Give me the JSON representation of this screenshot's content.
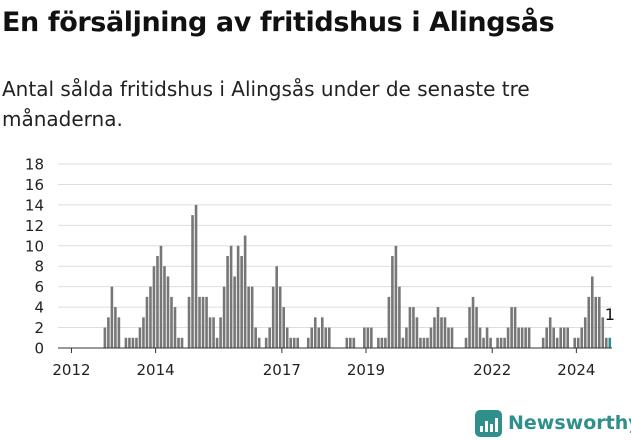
{
  "title": "En försäljning av fritidshus i Alingsås",
  "subtitle": "Antal sålda fritidshus i Alingsås under de senaste tre månaderna.",
  "brand": {
    "name": "Newsworthy"
  },
  "colors": {
    "bar": "#777777",
    "highlight": "#2a8f95",
    "grid": "#dddddd",
    "brand": "#2f8f8a"
  },
  "chart_data": {
    "type": "bar",
    "title": "",
    "xlabel": "",
    "ylabel": "",
    "ylim": [
      0,
      18
    ],
    "y_ticks": [
      "0",
      "2",
      "4",
      "6",
      "8",
      "10",
      "12",
      "14",
      "16",
      "18"
    ],
    "x_ticks": [
      "2012",
      "2014",
      "2017",
      "2019",
      "2022",
      "2024"
    ],
    "grid": true,
    "legend": "none",
    "last_value_label": "1",
    "series": [
      {
        "values": [
          0,
          0,
          0,
          0,
          0,
          0,
          0,
          0,
          0,
          0,
          0,
          0,
          0,
          2,
          3,
          6,
          4,
          3,
          0,
          1,
          1,
          1,
          1,
          2,
          3,
          5,
          6,
          8,
          9,
          10,
          8,
          7,
          5,
          4,
          1,
          1,
          0,
          5,
          13,
          14,
          5,
          5,
          5,
          3,
          3,
          1,
          3,
          6,
          9,
          10,
          7,
          10,
          9,
          11,
          6,
          6,
          2,
          1,
          0,
          1,
          2,
          6,
          8,
          6,
          4,
          2,
          1,
          1,
          1,
          0,
          0,
          1,
          2,
          3,
          2,
          3,
          2,
          2,
          0,
          0,
          0,
          0,
          1,
          1,
          1,
          0,
          0,
          2,
          2,
          2,
          0,
          1,
          1,
          1,
          5,
          9,
          10,
          6,
          1,
          2,
          4,
          4,
          3,
          1,
          1,
          1,
          2,
          3,
          4,
          3,
          3,
          2,
          2,
          0,
          0,
          0,
          1,
          4,
          5,
          4,
          2,
          1,
          2,
          1,
          0,
          1,
          1,
          1,
          2,
          4,
          4,
          2,
          2,
          2,
          2,
          0,
          0,
          0,
          1,
          2,
          3,
          2,
          1,
          2,
          2,
          2,
          0,
          1,
          1,
          2,
          3,
          5,
          7,
          5,
          5,
          3,
          1,
          1
        ]
      }
    ]
  }
}
